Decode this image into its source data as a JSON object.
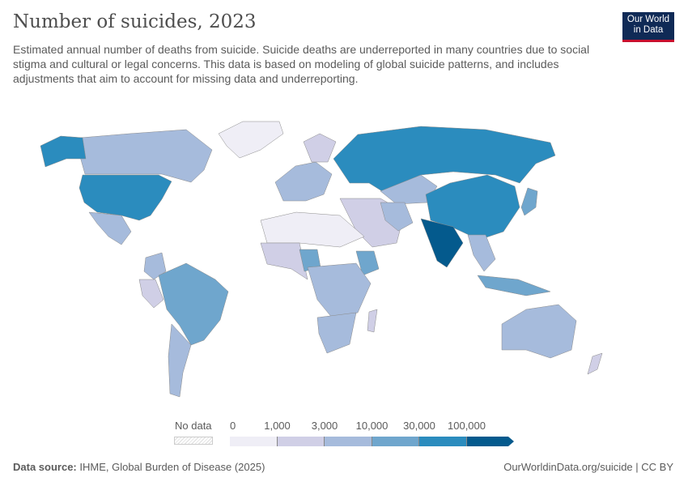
{
  "header": {
    "title": "Number of suicides, 2023",
    "subtitle_lines": [
      "Estimated annual number of deaths from suicide. Suicide deaths are underreported in many countries due to social",
      "stigma and cultural or legal concerns. This data is based on modeling of global suicide patterns, and includes",
      "adjustments that aim to account for missing data and underreporting."
    ],
    "logo_lines": [
      "Our World",
      "in Data"
    ]
  },
  "chart_data": {
    "type": "choropleth",
    "title": "Number of suicides, 2023",
    "year": 2023,
    "legend": {
      "no_data_label": "No data",
      "ticks": [
        "0",
        "1,000",
        "3,000",
        "10,000",
        "30,000",
        "100,000"
      ],
      "bins": [
        {
          "min": 0,
          "max": 1000,
          "color": "#efeef6"
        },
        {
          "min": 1000,
          "max": 3000,
          "color": "#d0cfe6"
        },
        {
          "min": 3000,
          "max": 10000,
          "color": "#a6bbdc"
        },
        {
          "min": 10000,
          "max": 30000,
          "color": "#6fa6cd"
        },
        {
          "min": 30000,
          "max": 100000,
          "color": "#2b8cbe"
        },
        {
          "min": 100000,
          "max": null,
          "color": "#045a8d"
        }
      ],
      "placement": "bottom-center"
    },
    "regions": [
      {
        "region": "Greenland",
        "bin": 0
      },
      {
        "region": "Canada",
        "bin": 2
      },
      {
        "region": "Alaska",
        "bin": 4
      },
      {
        "region": "United States",
        "bin": 4
      },
      {
        "region": "Mexico",
        "bin": 2
      },
      {
        "region": "Brazil",
        "bin": 3
      },
      {
        "region": "Argentina",
        "bin": 2
      },
      {
        "region": "Russia",
        "bin": 4
      },
      {
        "region": "China",
        "bin": 4
      },
      {
        "region": "India",
        "bin": 5
      },
      {
        "region": "Kazakhstan",
        "bin": 2
      },
      {
        "region": "Japan",
        "bin": 3
      },
      {
        "region": "Australia",
        "bin": 2
      },
      {
        "region": "Ethiopia",
        "bin": 3
      },
      {
        "region": "Nigeria",
        "bin": 3
      },
      {
        "region": "South Africa",
        "bin": 2
      },
      {
        "region": "Indonesia",
        "bin": 3
      },
      {
        "region": "New Zealand",
        "bin": 1
      }
    ]
  },
  "footer": {
    "source_label": "Data source:",
    "source_text": "IHME, Global Burden of Disease (2025)",
    "url_text": "OurWorldinData.org/suicide | CC BY"
  }
}
